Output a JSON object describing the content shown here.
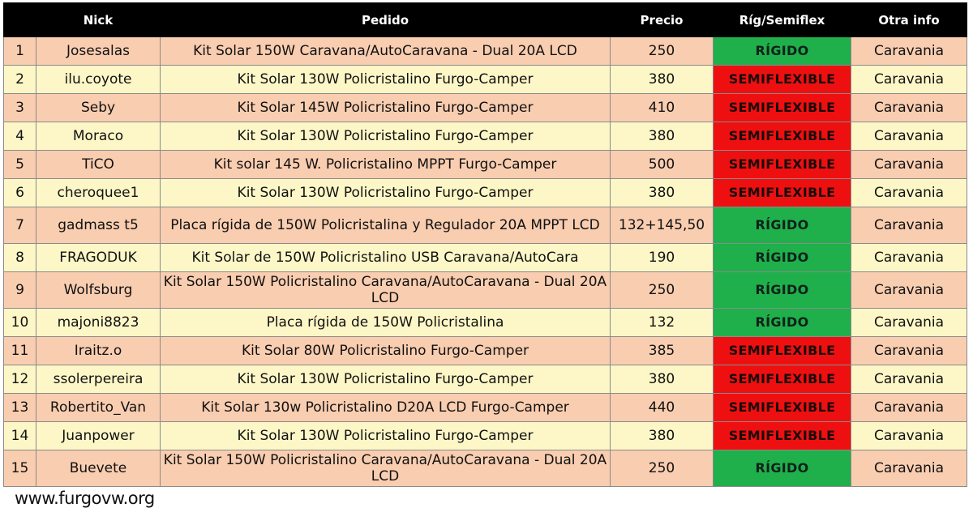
{
  "table": {
    "headers": {
      "num": "",
      "nick": "Nick",
      "pedido": "Pedido",
      "precio": "Precio",
      "tipo": "Ríg/Semiflex",
      "otra": "Otra info"
    },
    "rows": [
      {
        "num": "1",
        "nick": "Josesalas",
        "pedido": "Kit Solar 150W Caravana/AutoCaravana - Dual 20A LCD",
        "precio": "250",
        "tipo": "RÍGIDO",
        "otra": "Caravania"
      },
      {
        "num": "2",
        "nick": "ilu.coyote",
        "pedido": "Kit Solar 130W Policristalino Furgo-Camper",
        "precio": "380",
        "tipo": "SEMIFLEXIBLE",
        "otra": "Caravania"
      },
      {
        "num": "3",
        "nick": "Seby",
        "pedido": "Kit Solar 145W Policristalino Furgo-Camper",
        "precio": "410",
        "tipo": "SEMIFLEXIBLE",
        "otra": "Caravania"
      },
      {
        "num": "4",
        "nick": "Moraco",
        "pedido": "Kit Solar 130W Policristalino Furgo-Camper",
        "precio": "380",
        "tipo": "SEMIFLEXIBLE",
        "otra": "Caravania"
      },
      {
        "num": "5",
        "nick": "TiCO",
        "pedido": "Kit solar 145 W. Policristalino MPPT Furgo-Camper",
        "precio": "500",
        "tipo": "SEMIFLEXIBLE",
        "otra": "Caravania"
      },
      {
        "num": "6",
        "nick": "cheroquee1",
        "pedido": "Kit Solar 130W Policristalino Furgo-Camper",
        "precio": "380",
        "tipo": "SEMIFLEXIBLE",
        "otra": "Caravania"
      },
      {
        "num": "7",
        "nick": "gadmass t5",
        "pedido": "Placa rígida de 150W Policristalina y Regulador 20A MPPT LCD",
        "precio": "132+145,50",
        "tipo": "RÍGIDO",
        "otra": "Caravania"
      },
      {
        "num": "8",
        "nick": "FRAGODUK",
        "pedido": "Kit Solar de 150W Policristalino USB Caravana/AutoCara",
        "precio": "190",
        "tipo": "RÍGIDO",
        "otra": "Caravania"
      },
      {
        "num": "9",
        "nick": "Wolfsburg",
        "pedido": "Kit Solar 150W Policristalino Caravana/AutoCaravana - Dual 20A LCD",
        "precio": "250",
        "tipo": "RÍGIDO",
        "otra": "Caravania"
      },
      {
        "num": "10",
        "nick": "majoni8823",
        "pedido": "Placa rígida de 150W Policristalina",
        "precio": "132",
        "tipo": "RÍGIDO",
        "otra": "Caravania"
      },
      {
        "num": "11",
        "nick": "Iraitz.o",
        "pedido": "Kit Solar 80W Policristalino Furgo-Camper",
        "precio": "385",
        "tipo": "SEMIFLEXIBLE",
        "otra": "Caravania"
      },
      {
        "num": "12",
        "nick": "ssolerpereira",
        "pedido": "Kit Solar 130W Policristalino Furgo-Camper",
        "precio": "380",
        "tipo": "SEMIFLEXIBLE",
        "otra": "Caravania"
      },
      {
        "num": "13",
        "nick": "Robertito_Van",
        "pedido": "Kit Solar 130w Policristalino D20A LCD Furgo-Camper",
        "precio": "440",
        "tipo": "SEMIFLEXIBLE",
        "otra": "Caravania"
      },
      {
        "num": "14",
        "nick": "Juanpower",
        "pedido": "Kit Solar 130W Policristalino Furgo-Camper",
        "precio": "380",
        "tipo": "SEMIFLEXIBLE",
        "otra": "Caravania"
      },
      {
        "num": "15",
        "nick": "Buevete",
        "pedido": "Kit Solar 150W Policristalino Caravana/AutoCaravana - Dual 20A LCD",
        "precio": "250",
        "tipo": "RÍGIDO",
        "otra": "Caravania"
      }
    ]
  },
  "footer": {
    "watermark": "www.furgovw.org"
  },
  "colors": {
    "header_bg": "#000000",
    "row_odd": "#f9cdb0",
    "row_even": "#fdf7c7",
    "rigido": "#1fb04c",
    "semiflexible": "#ee1010"
  }
}
